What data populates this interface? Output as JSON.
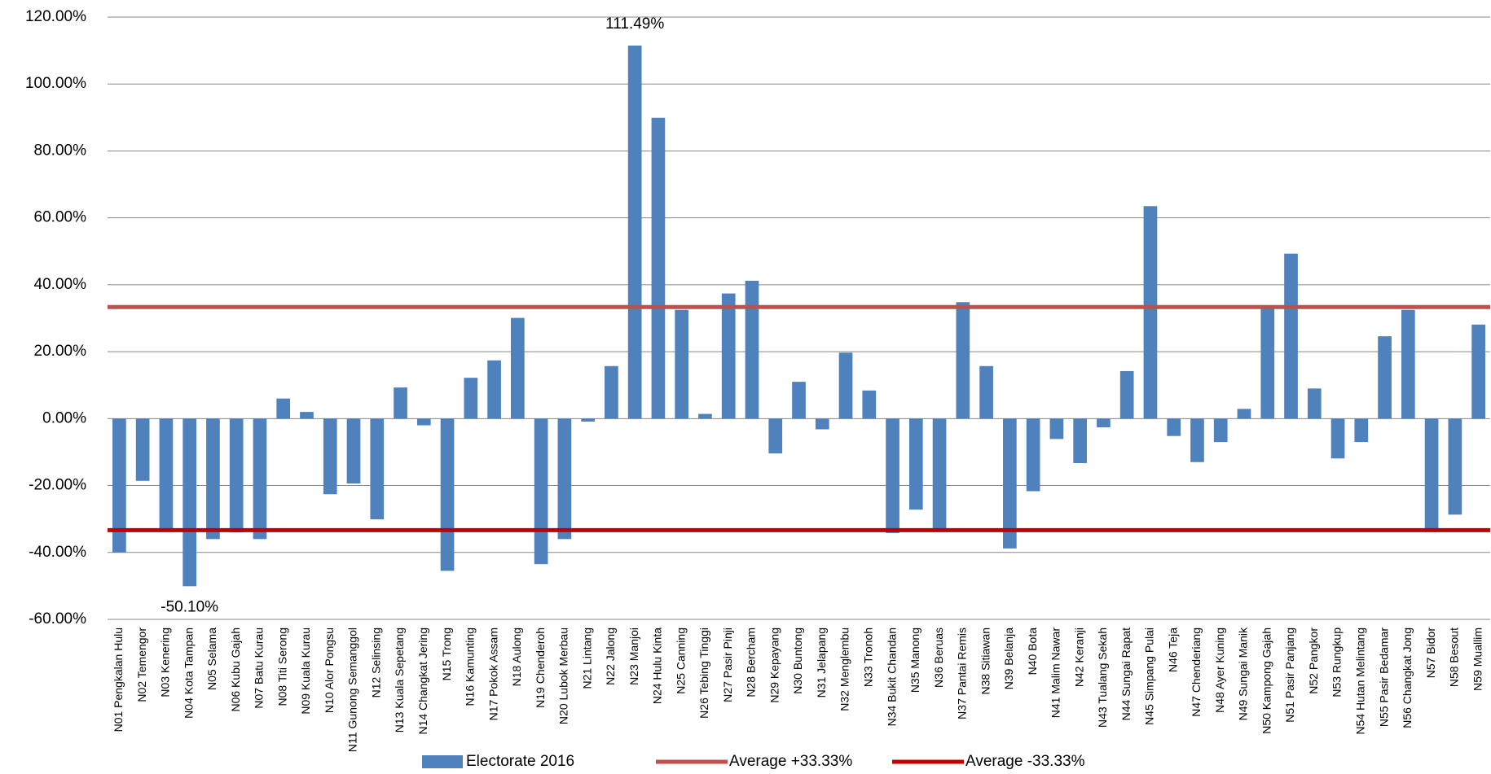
{
  "chart_data": {
    "type": "bar",
    "categories": [
      "N01 Pengkalan Hulu",
      "N02 Temengor",
      "N03 Kenering",
      "N04 Kota Tampan",
      "N05 Selama",
      "N06 Kubu Gajah",
      "N07 Batu Kurau",
      "N08 Titi Serong",
      "N09 Kuala Kurau",
      "N10 Alor Pongsu",
      "N11 Gunong Semanggol",
      "N12 Selinsing",
      "N13 Kuala Sepetang",
      "N14 Changkat Jering",
      "N15 Trong",
      "N16 Kamunting",
      "N17 Pokok Assam",
      "N18 Aulong",
      "N19 Chenderoh",
      "N20 Lubok Merbau",
      "N21 Lintang",
      "N22 Jalong",
      "N23 Manjoi",
      "N24 Hulu Kinta",
      "N25 Canning",
      "N26 Tebing Tinggi",
      "N27 Pasir Pinji",
      "N28 Bercham",
      "N29 Kepayang",
      "N30 Buntong",
      "N31 Jelapang",
      "N32 Menglembu",
      "N33 Tronoh",
      "N34 Bukit Chandan",
      "N35 Manong",
      "N36 Beruas",
      "N37 Pantai Remis",
      "N38 Sitiawan",
      "N39 Belanja",
      "N40 Bota",
      "N41 Malim Nawar",
      "N42 Keranji",
      "N43 Tualang Sekah",
      "N44 Sungai Rapat",
      "N45 Simpang Pulai",
      "N46 Teja",
      "N47 Chenderiang",
      "N48 Ayer Kuning",
      "N49 Sungai Manik",
      "N50 Kampong Gajah",
      "N51 Pasir Panjang",
      "N52 Pangkor",
      "N53 Rungkup",
      "N54 Hutan Melintang",
      "N55 Pasir Bedamar",
      "N56 Changkat Jong",
      "N57 Bidor",
      "N58 Besout",
      "N59 Muallim"
    ],
    "series": [
      {
        "name": "Electorate 2016",
        "color": "#4f81bd",
        "values": [
          -40,
          -18.6,
          -33.5,
          -50.1,
          -36,
          -34,
          -36,
          6,
          2,
          -22.6,
          -19.4,
          -30.1,
          9.3,
          -2,
          -45.5,
          12.2,
          17.4,
          30.1,
          -43.5,
          -36,
          -0.9,
          15.7,
          111.49,
          89.9,
          32.5,
          1.4,
          37.4,
          41.2,
          -10.4,
          11,
          -3.2,
          19.7,
          8.4,
          -34.2,
          -27.2,
          -33,
          34.8,
          15.7,
          -38.8,
          -21.7,
          -6.1,
          -13.3,
          -2.6,
          14.2,
          63.5,
          -5.2,
          -13,
          -7,
          2.9,
          33,
          49.3,
          9,
          -11.9,
          -7,
          24.6,
          32.5,
          -33,
          -28.7,
          28.1
        ],
        "value_labels": [
          null,
          null,
          null,
          "-50.10%",
          null,
          null,
          null,
          null,
          null,
          null,
          null,
          null,
          null,
          null,
          null,
          null,
          null,
          null,
          null,
          null,
          null,
          null,
          "111.49%",
          null,
          null,
          null,
          null,
          null,
          null,
          null,
          null,
          null,
          null,
          null,
          null,
          null,
          null,
          null,
          null,
          null,
          null,
          null,
          null,
          null,
          null,
          null,
          null,
          null,
          null,
          null,
          null,
          null,
          null,
          null,
          null,
          null,
          null,
          null,
          null
        ]
      }
    ],
    "reference_lines": [
      {
        "name": "Average +33.33%",
        "value": 33.33,
        "color": "#c0504d"
      },
      {
        "name": "Average -33.33%",
        "value": -33.33,
        "color": "#c00000"
      }
    ],
    "ylim": [
      -60,
      120
    ],
    "yticks": [
      {
        "value": -60,
        "label": "-60.00%"
      },
      {
        "value": -40,
        "label": "-40.00%"
      },
      {
        "value": -20,
        "label": "-20.00%"
      },
      {
        "value": 0,
        "label": "0.00%"
      },
      {
        "value": 20,
        "label": "20.00%"
      },
      {
        "value": 40,
        "label": "40.00%"
      },
      {
        "value": 60,
        "label": "60.00%"
      },
      {
        "value": 80,
        "label": "80.00%"
      },
      {
        "value": 100,
        "label": "100.00%"
      },
      {
        "value": 120,
        "label": "120.00%"
      }
    ],
    "grid": true
  }
}
